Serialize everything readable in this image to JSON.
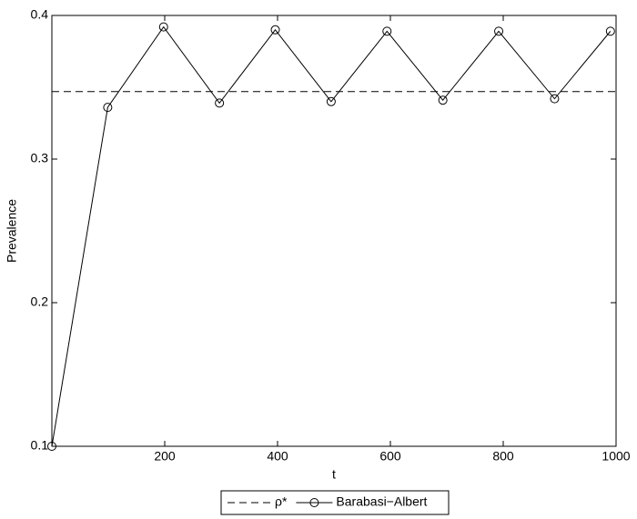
{
  "chart_data": {
    "type": "line",
    "x_label": "t",
    "y_label": "Prevalence",
    "xlim": [
      0,
      1000
    ],
    "xticks": [
      200,
      400,
      600,
      800,
      1000
    ],
    "ylim": [
      0.1,
      0.4
    ],
    "yticks": [
      0.1,
      0.2,
      0.3,
      0.4
    ],
    "series": [
      {
        "name": "ρ*",
        "color": "#000000",
        "dash": true,
        "marker": "none",
        "x": [
          0,
          1000
        ],
        "values": [
          0.347,
          0.347
        ]
      },
      {
        "name": "Barabasi−Albert",
        "color": "#000000",
        "dash": false,
        "marker": "circle",
        "x": [
          0,
          99,
          198,
          297,
          396,
          495,
          594,
          693,
          792,
          891,
          990
        ],
        "values": [
          0.1,
          0.336,
          0.392,
          0.339,
          0.39,
          0.34,
          0.389,
          0.341,
          0.389,
          0.342,
          0.389
        ]
      }
    ],
    "legend": "bottom"
  }
}
